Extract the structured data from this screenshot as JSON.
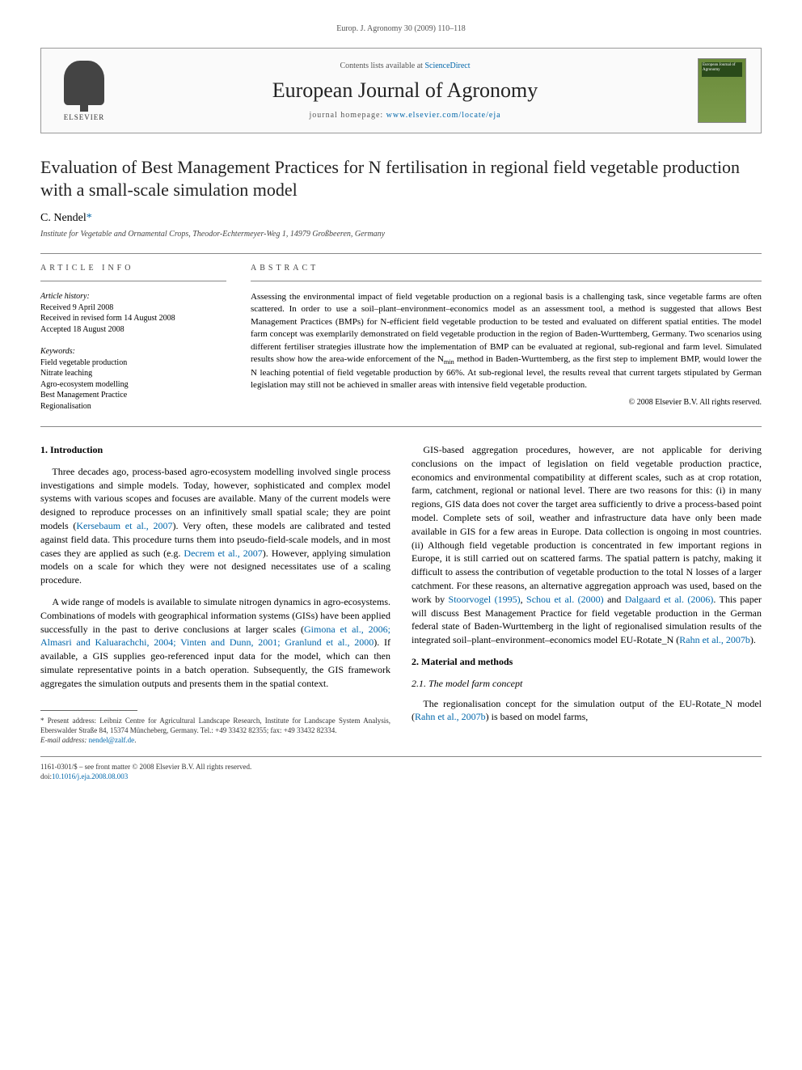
{
  "running_head": "Europ. J. Agronomy 30 (2009) 110–118",
  "header": {
    "publisher_name": "ELSEVIER",
    "contents_prefix": "Contents lists available at ",
    "contents_link": "ScienceDirect",
    "journal_name": "European Journal of Agronomy",
    "homepage_prefix": "journal homepage: ",
    "homepage_link": "www.elsevier.com/locate/eja",
    "cover_caption": "European Journal of Agronomy"
  },
  "article": {
    "title": "Evaluation of Best Management Practices for N fertilisation in regional field vegetable production with a small-scale simulation model",
    "author": "C. Nendel",
    "star": "*",
    "affiliation": "Institute for Vegetable and Ornamental Crops, Theodor-Echtermeyer-Weg 1, 14979 Großbeeren, Germany"
  },
  "info": {
    "label": "ARTICLE INFO",
    "history_title": "Article history:",
    "received": "Received 9 April 2008",
    "revised": "Received in revised form 14 August 2008",
    "accepted": "Accepted 18 August 2008",
    "keywords_title": "Keywords:",
    "keywords": [
      "Field vegetable production",
      "Nitrate leaching",
      "Agro-ecosystem modelling",
      "Best Management Practice",
      "Regionalisation"
    ]
  },
  "abstract": {
    "label": "ABSTRACT",
    "text_pre": "Assessing the environmental impact of field vegetable production on a regional basis is a challenging task, since vegetable farms are often scattered. In order to use a soil–plant–environment–economics model as an assessment tool, a method is suggested that allows Best Management Practices (BMPs) for N-efficient field vegetable production to be tested and evaluated on different spatial entities. The model farm concept was exemplarily demonstrated on field vegetable production in the region of Baden-Wurttemberg, Germany. Two scenarios using different fertiliser strategies illustrate how the implementation of BMP can be evaluated at regional, sub-regional and farm level. Simulated results show how the area-wide enforcement of the N",
    "nmin_sub": "min",
    "text_post": " method in Baden-Wurttemberg, as the first step to implement BMP, would lower the N leaching potential of field vegetable production by 66%. At sub-regional level, the results reveal that current targets stipulated by German legislation may still not be achieved in smaller areas with intensive field vegetable production.",
    "copyright": "© 2008 Elsevier B.V. All rights reserved."
  },
  "body": {
    "intro_heading": "1. Introduction",
    "intro_p1_a": "Three decades ago, process-based agro-ecosystem modelling involved single process investigations and simple models. Today, however, sophisticated and complex model systems with various scopes and focuses are available. Many of the current models were designed to reproduce processes on an infinitively small spatial scale; they are point models (",
    "intro_p1_ref1": "Kersebaum et al., 2007",
    "intro_p1_b": "). Very often, these models are calibrated and tested against field data. This procedure turns them into pseudo-field-scale models, and in most cases they are applied as such (e.g. ",
    "intro_p1_ref2": "Decrem et al., 2007",
    "intro_p1_c": "). However, applying simulation models on a scale for which they were not designed necessitates use of a scaling procedure.",
    "intro_p2_a": "A wide range of models is available to simulate nitrogen dynamics in agro-ecosystems. Combinations of models with geographical information systems (GISs) have been applied successfully in the past to derive conclusions at larger scales (",
    "intro_p2_ref": "Gimona et al., 2006; Almasri and Kaluarachchi, 2004; Vinten and Dunn, 2001; Granlund et al., 2000",
    "intro_p2_b": "). If available, a GIS supplies geo-referenced input data for the model, which can then simulate representative points in a batch operation. Subsequently, the GIS framework aggregates the simulation outputs and presents them in the spatial context.",
    "col2_p1_a": "GIS-based aggregation procedures, however, are not applicable for deriving conclusions on the impact of legislation on field vegetable production practice, economics and environmental compatibility at different scales, such as at crop rotation, farm, catchment, regional or national level. There are two reasons for this: (i) in many regions, GIS data does not cover the target area sufficiently to drive a process-based point model. Complete sets of soil, weather and infrastructure data have only been made available in GIS for a few areas in Europe. Data collection is ongoing in most countries. (ii) Although field vegetable production is concentrated in few important regions in Europe, it is still carried out on scattered farms. The spatial pattern is patchy, making it difficult to assess the contribution of vegetable production to the total N losses of a larger catchment. For these reasons, an alternative aggregation approach was used, based on the work by ",
    "col2_p1_ref1": "Stoorvogel (1995)",
    "col2_p1_b": ", ",
    "col2_p1_ref2": "Schou et al. (2000)",
    "col2_p1_c": " and ",
    "col2_p1_ref3": "Dalgaard et al. (2006)",
    "col2_p1_d": ". This paper will discuss Best Management Practice for field vegetable production in the German federal state of Baden-Wurttemberg in the light of regionalised simulation results of the integrated soil–plant–environment–economics model EU-Rotate_N (",
    "col2_p1_ref4": "Rahn et al., 2007b",
    "col2_p1_e": ").",
    "mm_heading": "2. Material and methods",
    "mm_sub": "2.1. The model farm concept",
    "mm_p1_a": "The regionalisation concept for the simulation output of the EU-Rotate_N model (",
    "mm_p1_ref": "Rahn et al., 2007b",
    "mm_p1_b": ") is based on model farms,"
  },
  "footnote": {
    "star": "*",
    "text": " Present address: Leibniz Centre for Agricultural Landscape Research, Institute for Landscape System Analysis, Eberswalder Straße 84, 15374 Müncheberg, Germany. Tel.: +49 33432 82355; fax: +49 33432 82334.",
    "email_label": "E-mail address: ",
    "email": "nendel@zalf.de"
  },
  "bib": {
    "line1": "1161-0301/$ – see front matter © 2008 Elsevier B.V. All rights reserved.",
    "doi_label": "doi:",
    "doi": "10.1016/j.eja.2008.08.003"
  },
  "colors": {
    "link": "#0066aa",
    "text": "#000000",
    "muted": "#555555",
    "border": "#999999",
    "cover_bg": "#6a8a3a"
  }
}
